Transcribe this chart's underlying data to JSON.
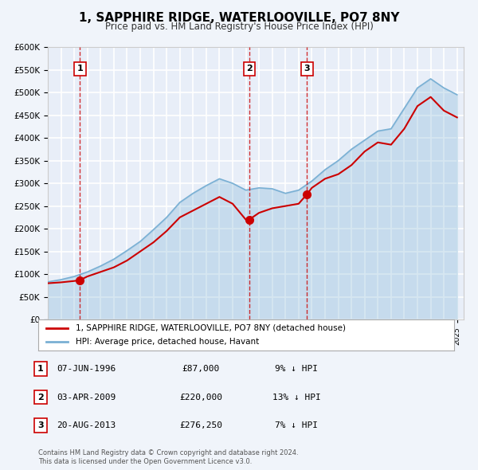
{
  "title": "1, SAPPHIRE RIDGE, WATERLOOVILLE, PO7 8NY",
  "subtitle": "Price paid vs. HM Land Registry's House Price Index (HPI)",
  "background_color": "#f0f4fa",
  "plot_background": "#e8eef8",
  "grid_color": "#ffffff",
  "ylim": [
    0,
    600000
  ],
  "yticks": [
    0,
    50000,
    100000,
    150000,
    200000,
    250000,
    300000,
    350000,
    400000,
    450000,
    500000,
    550000,
    600000
  ],
  "xlim_start": 1994.0,
  "xlim_end": 2025.5,
  "sale_dates": [
    1996.44,
    2009.25,
    2013.64
  ],
  "sale_prices": [
    87000,
    220000,
    276250
  ],
  "sale_labels": [
    "1",
    "2",
    "3"
  ],
  "sale_color": "#cc0000",
  "hpi_color": "#7ab0d4",
  "vline_color": "#cc0000",
  "legend_label_price": "1, SAPPHIRE RIDGE, WATERLOOVILLE, PO7 8NY (detached house)",
  "legend_label_hpi": "HPI: Average price, detached house, Havant",
  "table_rows": [
    [
      "1",
      "07-JUN-1996",
      "£87,000",
      "9% ↓ HPI"
    ],
    [
      "2",
      "03-APR-2009",
      "£220,000",
      "13% ↓ HPI"
    ],
    [
      "3",
      "20-AUG-2013",
      "£276,250",
      "7% ↓ HPI"
    ]
  ],
  "footer_line1": "Contains HM Land Registry data © Crown copyright and database right 2024.",
  "footer_line2": "This data is licensed under the Open Government Licence v3.0.",
  "price_line_years": [
    1994,
    1995,
    1996,
    1996.44,
    1997,
    1998,
    1999,
    2000,
    2001,
    2002,
    2003,
    2004,
    2005,
    2006,
    2007,
    2008,
    2009,
    2009.25,
    2010,
    2011,
    2012,
    2013,
    2013.64,
    2014,
    2015,
    2016,
    2017,
    2018,
    2019,
    2020,
    2021,
    2022,
    2023,
    2024,
    2025
  ],
  "price_line_values": [
    80000,
    82000,
    85000,
    87000,
    95000,
    105000,
    115000,
    130000,
    150000,
    170000,
    195000,
    225000,
    240000,
    255000,
    270000,
    255000,
    220000,
    220000,
    235000,
    245000,
    250000,
    255000,
    276250,
    290000,
    310000,
    320000,
    340000,
    370000,
    390000,
    385000,
    420000,
    470000,
    490000,
    460000,
    445000
  ],
  "hpi_line_years": [
    1994,
    1995,
    1996,
    1997,
    1998,
    1999,
    2000,
    2001,
    2002,
    2003,
    2004,
    2005,
    2006,
    2007,
    2008,
    2009,
    2010,
    2011,
    2012,
    2013,
    2014,
    2015,
    2016,
    2017,
    2018,
    2019,
    2020,
    2021,
    2022,
    2023,
    2024,
    2025
  ],
  "hpi_line_values": [
    83000,
    88000,
    95000,
    105000,
    118000,
    133000,
    152000,
    172000,
    198000,
    225000,
    258000,
    278000,
    295000,
    310000,
    300000,
    285000,
    290000,
    288000,
    278000,
    285000,
    305000,
    330000,
    350000,
    375000,
    395000,
    415000,
    420000,
    465000,
    510000,
    530000,
    510000,
    495000
  ]
}
